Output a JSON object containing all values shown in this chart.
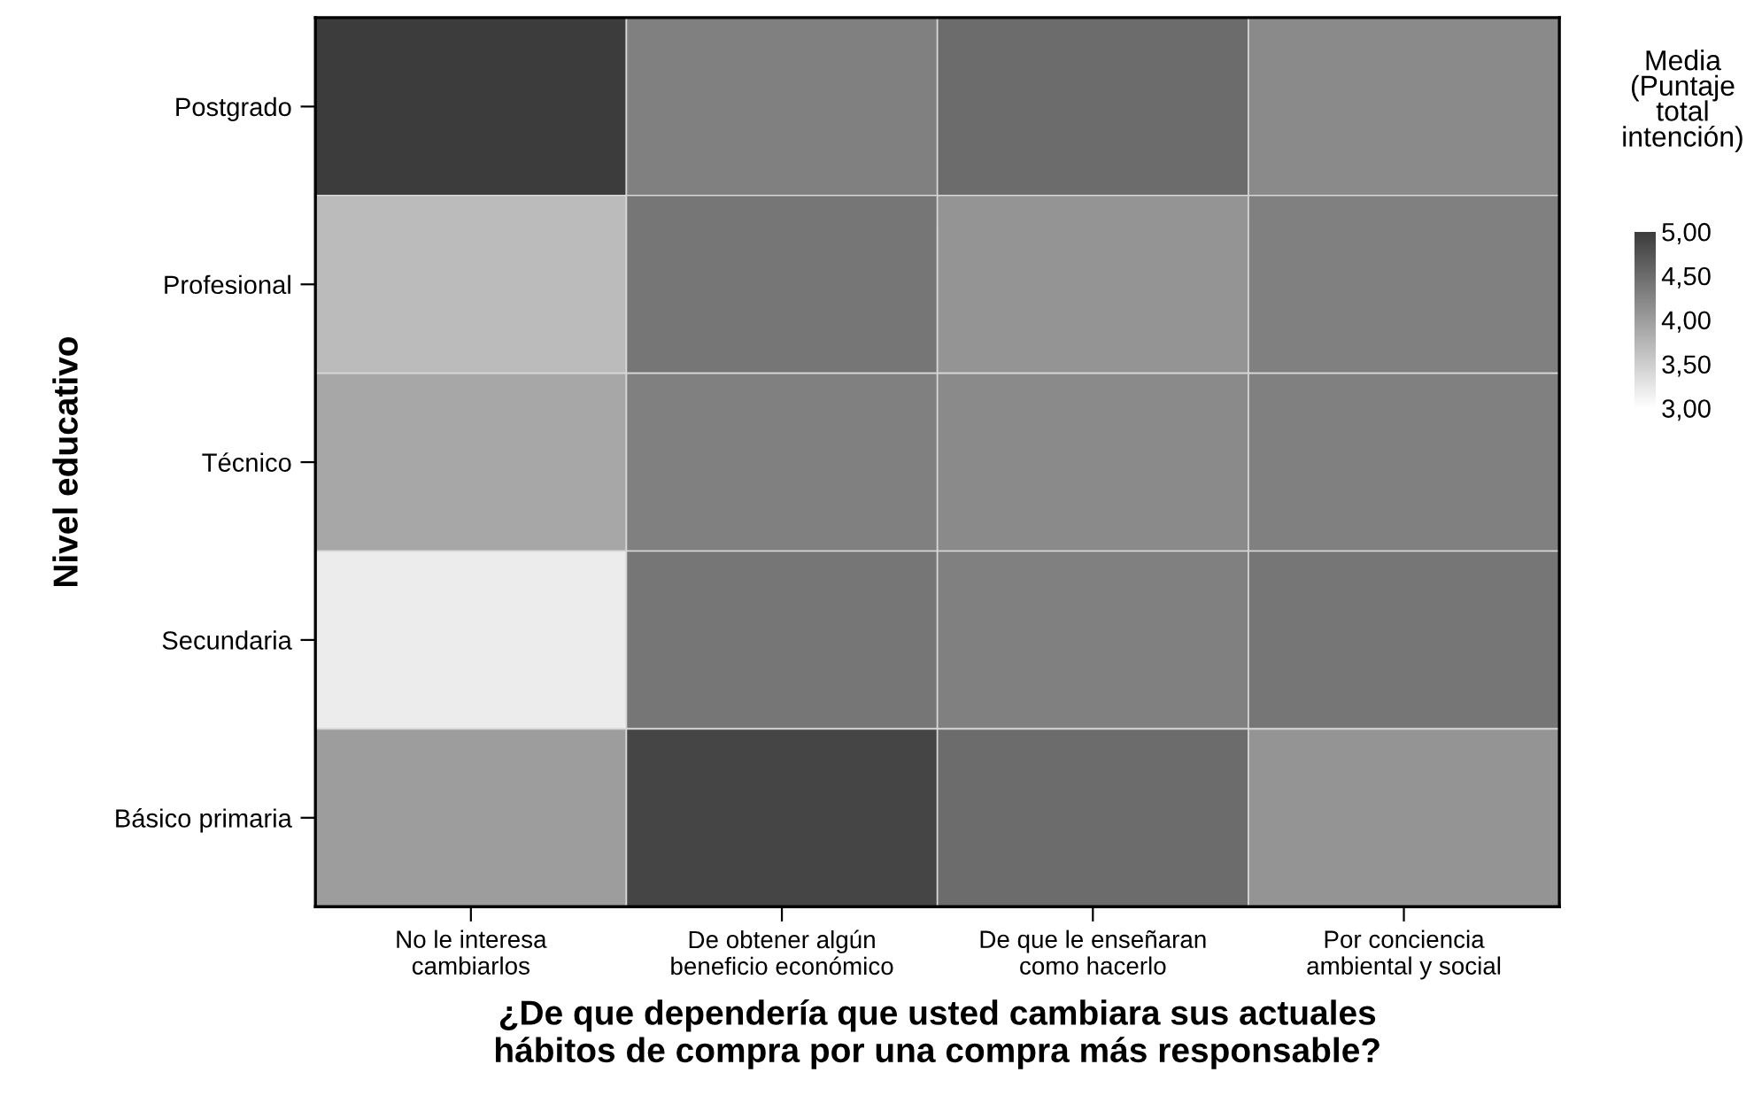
{
  "chart_data": {
    "type": "heatmap",
    "xlabel": "¿De que dependería que usted cambiara sus actuales\nhábitos de compra por una compra más responsable?",
    "ylabel": "Nivel educativo",
    "clabel": "Media\n(Puntaje\ntotal\nintención)",
    "categories": [
      "No le interesa\ncambiarlos",
      "De obtener algún\nbeneficio económico",
      "De que le enseñaran\ncomo hacerlo",
      "Por conciencia\nambiental y social"
    ],
    "y_categories": [
      "Postgrado",
      "Profesional",
      "Técnico",
      "Secundaria",
      "Básico primaria"
    ],
    "cells": [
      [
        5.0,
        4.3,
        4.5,
        4.2
      ],
      [
        3.7,
        4.4,
        4.1,
        4.3
      ],
      [
        3.9,
        4.3,
        4.2,
        4.3
      ],
      [
        3.2,
        4.4,
        4.3,
        4.4
      ],
      [
        4.0,
        4.9,
        4.5,
        4.1
      ]
    ],
    "clim": [
      3,
      5
    ],
    "cticks": [
      {
        "value": 5,
        "label": "5,00"
      },
      {
        "value": 4.5,
        "label": "4,50"
      },
      {
        "value": 4,
        "label": "4,00"
      },
      {
        "value": 3.5,
        "label": "3,50"
      },
      {
        "value": 3,
        "label": "3,00"
      }
    ]
  }
}
